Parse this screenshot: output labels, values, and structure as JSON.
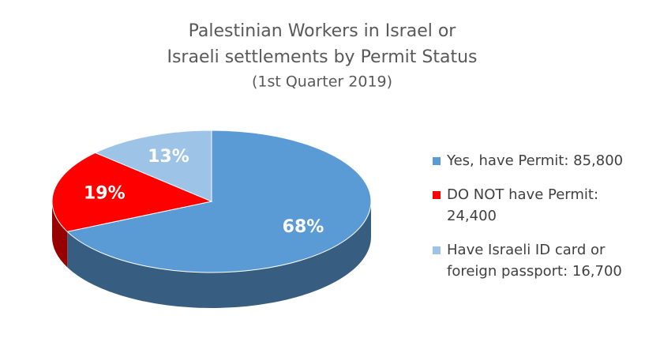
{
  "chart_data": {
    "type": "pie",
    "title": [
      "Palestinian Workers in Israel or",
      "Israeli settlements by Permit Status"
    ],
    "subtitle": "(1st Quarter 2019)",
    "categories": [
      "Yes, have Permit: 85,800",
      "DO NOT have Permit: 24,400",
      "Have Israeli ID card or foreign passport: 16,700"
    ],
    "values": [
      68,
      19,
      13
    ],
    "value_labels": [
      "68%",
      "19%",
      "13%"
    ],
    "colors": [
      "#5b9bd5",
      "#ff0000",
      "#9dc3e6"
    ],
    "legend": "right"
  }
}
